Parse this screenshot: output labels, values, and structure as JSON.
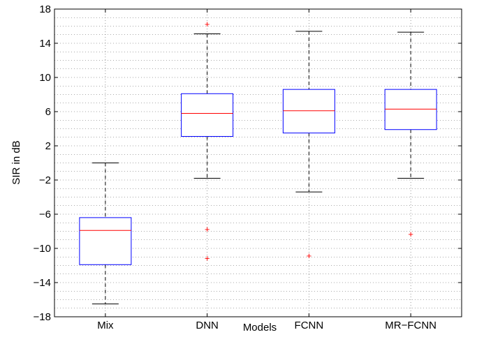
{
  "chart_data": {
    "type": "box",
    "xlabel": "Models",
    "ylabel": "SIR in dB",
    "ylim": [
      -18,
      18
    ],
    "yticks": [
      -18,
      -14,
      -10,
      -6,
      -2,
      2,
      6,
      10,
      14,
      18
    ],
    "y_minor_step": 1,
    "grid": "dotted",
    "colors": {
      "box": "#0000ff",
      "median": "#ff0000",
      "whisker": "#000000",
      "outlier": "#ff0000"
    },
    "categories": [
      "Mix",
      "DNN",
      "FCNN",
      "MR−FCNN"
    ],
    "boxes": [
      {
        "label": "Mix",
        "whisker_low": -16.5,
        "q1": -11.9,
        "median": -7.9,
        "q3": -6.4,
        "whisker_high": 0.0,
        "outliers": []
      },
      {
        "label": "DNN",
        "whisker_low": -1.8,
        "q1": 3.1,
        "median": 5.8,
        "q3": 8.1,
        "whisker_high": 15.1,
        "outliers": [
          16.3,
          -7.7,
          -11.1
        ]
      },
      {
        "label": "FCNN",
        "whisker_low": -3.4,
        "q1": 3.5,
        "median": 6.1,
        "q3": 8.6,
        "whisker_high": 15.4,
        "outliers": [
          -10.8
        ]
      },
      {
        "label": "MR−FCNN",
        "whisker_low": -1.8,
        "q1": 3.9,
        "median": 6.3,
        "q3": 8.6,
        "whisker_high": 15.3,
        "outliers": [
          -8.3
        ]
      }
    ]
  }
}
